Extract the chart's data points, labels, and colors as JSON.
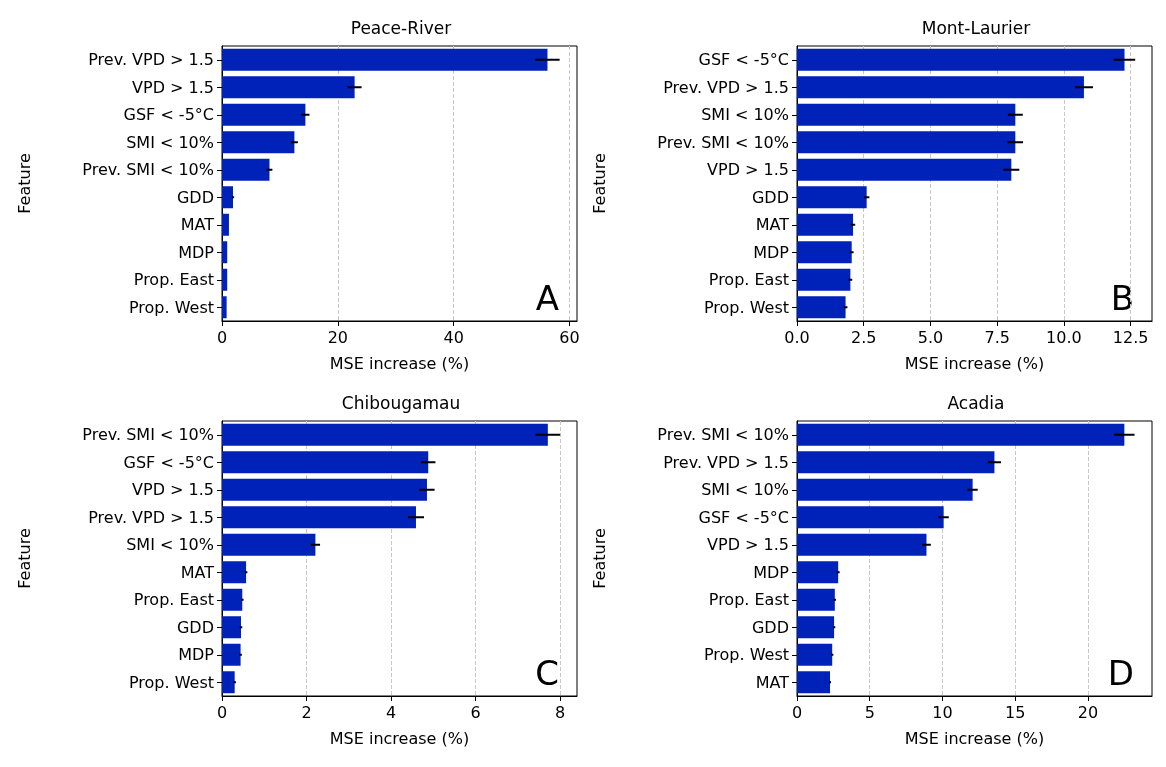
{
  "chart_data": [
    {
      "type": "bar",
      "orientation": "horizontal",
      "title": "Peace-River",
      "xlabel": "MSE increase (%)",
      "ylabel": "Feature",
      "categories": [
        "Prev. VPD > 1.5",
        "VPD > 1.5",
        "GSF < -5°C",
        "SMI < 10%",
        "Prev. SMI < 10%",
        "GDD",
        "MAT",
        "MDP",
        "Prop. East",
        "Prop. West"
      ],
      "values": [
        56.2,
        22.9,
        14.4,
        12.5,
        8.2,
        1.9,
        1.2,
        0.9,
        0.9,
        0.8
      ],
      "errors": [
        2.1,
        1.2,
        0.7,
        0.6,
        0.5,
        0.2,
        null,
        null,
        null,
        null
      ],
      "color": "#0022b8",
      "xlim": [
        0,
        61.3
      ],
      "xticks": [
        0,
        20,
        40,
        60
      ],
      "grid": "x",
      "annotations": [
        "A"
      ]
    },
    {
      "type": "bar",
      "orientation": "horizontal",
      "title": "Mont-Laurier",
      "xlabel": "MSE increase (%)",
      "ylabel": "Feature",
      "categories": [
        "GSF < -5°C",
        "Prev. VPD > 1.5",
        "SMI < 10%",
        "Prev. SMI < 10%",
        "VPD > 1.5",
        "GDD",
        "MAT",
        "MDP",
        "Prop. East",
        "Prop. West"
      ],
      "values": [
        12.27,
        10.75,
        8.18,
        8.18,
        8.03,
        2.61,
        2.1,
        2.05,
        2.0,
        1.82
      ],
      "errors": [
        0.4,
        0.34,
        0.28,
        0.29,
        0.3,
        0.1,
        0.08,
        0.07,
        0.07,
        0.07
      ],
      "color": "#0022b8",
      "xlim": [
        0,
        13.3
      ],
      "xticks": [
        {
          "value": 0,
          "label": "0.0"
        },
        2.5,
        {
          "value": 5,
          "label": "5.0"
        },
        7.5,
        {
          "value": 10,
          "label": "10.0"
        },
        12.5
      ],
      "grid": "x",
      "annotations": [
        "B"
      ]
    },
    {
      "type": "bar",
      "orientation": "horizontal",
      "title": "Chibougamau",
      "xlabel": "MSE increase (%)",
      "ylabel": "Feature",
      "categories": [
        "Prev. SMI < 10%",
        "GSF < -5°C",
        "VPD > 1.5",
        "Prev. VPD > 1.5",
        "SMI < 10%",
        "MAT",
        "Prop. East",
        "GDD",
        "MDP",
        "Prop. West"
      ],
      "values": [
        7.71,
        4.88,
        4.85,
        4.59,
        2.21,
        0.57,
        0.48,
        0.45,
        0.44,
        0.3
      ],
      "errors": [
        0.29,
        0.17,
        0.18,
        0.19,
        0.11,
        0.03,
        0.03,
        0.03,
        0.03,
        0.03
      ],
      "color": "#0022b8",
      "xlim": [
        0,
        8.4
      ],
      "xticks": [
        0,
        2,
        4,
        6,
        8
      ],
      "grid": "x",
      "annotations": [
        "C"
      ]
    },
    {
      "type": "bar",
      "orientation": "horizontal",
      "title": "Acadia",
      "xlabel": "MSE increase (%)",
      "ylabel": "Feature",
      "categories": [
        "Prev. SMI < 10%",
        "Prev. VPD > 1.5",
        "SMI < 10%",
        "GSF < -5°C",
        "VPD > 1.5",
        "MDP",
        "Prop. East",
        "GDD",
        "Prop. West",
        "MAT"
      ],
      "values": [
        22.5,
        13.57,
        12.07,
        10.08,
        8.9,
        2.83,
        2.6,
        2.55,
        2.42,
        2.27
      ],
      "errors": [
        0.7,
        0.45,
        0.35,
        0.35,
        0.3,
        0.1,
        0.08,
        0.08,
        0.08,
        0.07
      ],
      "color": "#0022b8",
      "xlim": [
        0,
        24.4
      ],
      "xticks": [
        0,
        5,
        10,
        15,
        20
      ],
      "grid": "x",
      "annotations": [
        "D"
      ]
    }
  ]
}
